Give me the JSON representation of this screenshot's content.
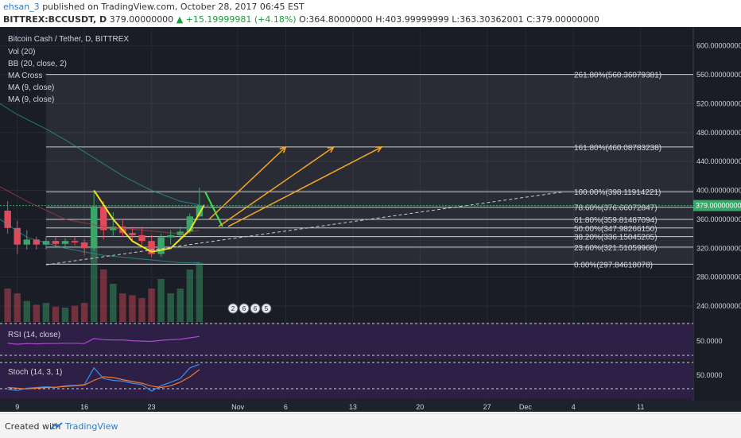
{
  "header": {
    "user": "ehsan_3",
    "published": "published on TradingView.com, October 28, 2017 06:45 EST",
    "symbol": "BITTREX:BCCUSDT, D",
    "last": "379.00000000",
    "change": "+15.19999981 (+4.18%)",
    "open": "O:364.80000000",
    "high": "H:403.99999999",
    "low": "L:363.30362001",
    "close": "C:379.00000000"
  },
  "legend": {
    "title": "Bitcoin Cash / Tether, D, BITTREX",
    "items": [
      "Vol (20)",
      "BB (20, close, 2)",
      "MA Cross",
      "MA (9, close)",
      "MA (9, close)"
    ]
  },
  "rsi_label": "RSI (14, close)",
  "stoch_label": "Stoch (14, 3, 1)",
  "rsi_level": "50.0000",
  "stoch_level": "50.0000",
  "price_tag": "379.00000000",
  "event_badges": [
    "2",
    "6",
    "6",
    "5"
  ],
  "footer": {
    "created": "Created with",
    "brand": "TradingView"
  },
  "colors": {
    "up": "#3aa66a",
    "down": "#e04a5a",
    "accent": "#2a7ad1",
    "panel": "#1a1d26",
    "osc_bg": "#2d1f45"
  },
  "chart_data": {
    "type": "candlestick",
    "title": "Bitcoin Cash / Tether, D, BITTREX",
    "y_ticks": [
      "600.00000000",
      "560.00000000",
      "520.00000000",
      "480.00000000",
      "440.00000000",
      "400.00000000",
      "360.00000000",
      "320.00000000",
      "280.00000000",
      "240.00000000"
    ],
    "y_tick_values": [
      600,
      560,
      520,
      480,
      440,
      400,
      360,
      320,
      280,
      240
    ],
    "ylim": [
      218,
      626
    ],
    "x_ticks": [
      "9",
      "16",
      "23",
      "Nov",
      "6",
      "13",
      "20",
      "27",
      "Dec",
      "4",
      "11"
    ],
    "x_tick_days": [
      9,
      16,
      23,
      32,
      37,
      44,
      51,
      58,
      62,
      67,
      74
    ],
    "xlim": [
      7.2,
      79.5
    ],
    "candles": [
      {
        "d": 8,
        "o": 372,
        "h": 385,
        "l": 340,
        "c": 348
      },
      {
        "d": 9,
        "o": 348,
        "h": 358,
        "l": 312,
        "c": 325
      },
      {
        "d": 10,
        "o": 325,
        "h": 345,
        "l": 318,
        "c": 332
      },
      {
        "d": 11,
        "o": 332,
        "h": 336,
        "l": 318,
        "c": 325
      },
      {
        "d": 12,
        "o": 325,
        "h": 335,
        "l": 318,
        "c": 330
      },
      {
        "d": 13,
        "o": 330,
        "h": 336,
        "l": 322,
        "c": 326
      },
      {
        "d": 14,
        "o": 326,
        "h": 334,
        "l": 320,
        "c": 330
      },
      {
        "d": 15,
        "o": 330,
        "h": 336,
        "l": 324,
        "c": 328
      },
      {
        "d": 16,
        "o": 328,
        "h": 333,
        "l": 310,
        "c": 320
      },
      {
        "d": 17,
        "o": 320,
        "h": 400,
        "l": 316,
        "c": 378
      },
      {
        "d": 18,
        "o": 378,
        "h": 385,
        "l": 332,
        "c": 345
      },
      {
        "d": 19,
        "o": 345,
        "h": 370,
        "l": 336,
        "c": 350
      },
      {
        "d": 20,
        "o": 350,
        "h": 360,
        "l": 335,
        "c": 341
      },
      {
        "d": 21,
        "o": 341,
        "h": 350,
        "l": 330,
        "c": 338
      },
      {
        "d": 22,
        "o": 338,
        "h": 350,
        "l": 325,
        "c": 330
      },
      {
        "d": 23,
        "o": 330,
        "h": 338,
        "l": 308,
        "c": 312
      },
      {
        "d": 24,
        "o": 312,
        "h": 340,
        "l": 308,
        "c": 335
      },
      {
        "d": 25,
        "o": 335,
        "h": 345,
        "l": 325,
        "c": 338
      },
      {
        "d": 26,
        "o": 338,
        "h": 350,
        "l": 332,
        "c": 343
      },
      {
        "d": 27,
        "o": 343,
        "h": 368,
        "l": 340,
        "c": 364
      },
      {
        "d": 28,
        "o": 364,
        "h": 404,
        "l": 363,
        "c": 379
      }
    ],
    "fibonacci": [
      {
        "label": "261.80%(560.36079381)",
        "value": 560.36079381
      },
      {
        "label": "161.80%(460.08783238)",
        "value": 460.08783238
      },
      {
        "label": "100.00%(398.11914221)",
        "value": 398.11914221
      },
      {
        "label": "78.60%(376.66072847)",
        "value": 376.66072847
      },
      {
        "label": "61.80%(359.81487094)",
        "value": 359.81487094
      },
      {
        "label": "50.00%(347.98266150)",
        "value": 347.9826615
      },
      {
        "label": "38.20%(336.15045205)",
        "value": 336.15045205
      },
      {
        "label": "23.60%(321.51059968)",
        "value": 321.51059968
      },
      {
        "label": "0.00%(297.84618078)",
        "value": 297.84618078
      }
    ],
    "fib_start_day": 12,
    "cup_curve": [
      [
        17,
        400
      ],
      [
        19,
        360
      ],
      [
        21,
        330
      ],
      [
        23,
        315
      ],
      [
        25,
        320
      ],
      [
        27,
        345
      ],
      [
        28.5,
        380
      ]
    ],
    "green_path": [
      [
        28.6,
        398
      ],
      [
        30.4,
        350
      ]
    ],
    "arrows": [
      {
        "from": [
          29,
          360
        ],
        "to": [
          37,
          460
        ]
      },
      {
        "from": [
          30,
          350
        ],
        "to": [
          42,
          460
        ]
      },
      {
        "from": [
          31,
          350
        ],
        "to": [
          47,
          460
        ]
      }
    ],
    "trendline": {
      "from": [
        12,
        297
      ],
      "to": [
        66,
        398
      ]
    },
    "volume": [
      0.35,
      0.3,
      0.22,
      0.18,
      0.2,
      0.16,
      0.15,
      0.17,
      0.2,
      1.0,
      0.55,
      0.4,
      0.3,
      0.28,
      0.25,
      0.35,
      0.45,
      0.3,
      0.35,
      0.55,
      0.62
    ],
    "rsi": [
      45,
      42,
      44,
      43,
      44,
      44,
      45,
      45,
      44,
      58,
      55,
      54,
      54,
      52,
      51,
      50,
      53,
      55,
      56,
      60,
      64
    ],
    "stoch": [
      25,
      22,
      28,
      30,
      32,
      30,
      35,
      36,
      38,
      85,
      55,
      50,
      48,
      42,
      38,
      20,
      35,
      45,
      55,
      85,
      95
    ],
    "stoch_d": [
      30,
      28,
      26,
      28,
      30,
      31,
      33,
      35,
      37,
      50,
      60,
      58,
      52,
      47,
      42,
      34,
      30,
      35,
      45,
      60,
      80
    ]
  }
}
